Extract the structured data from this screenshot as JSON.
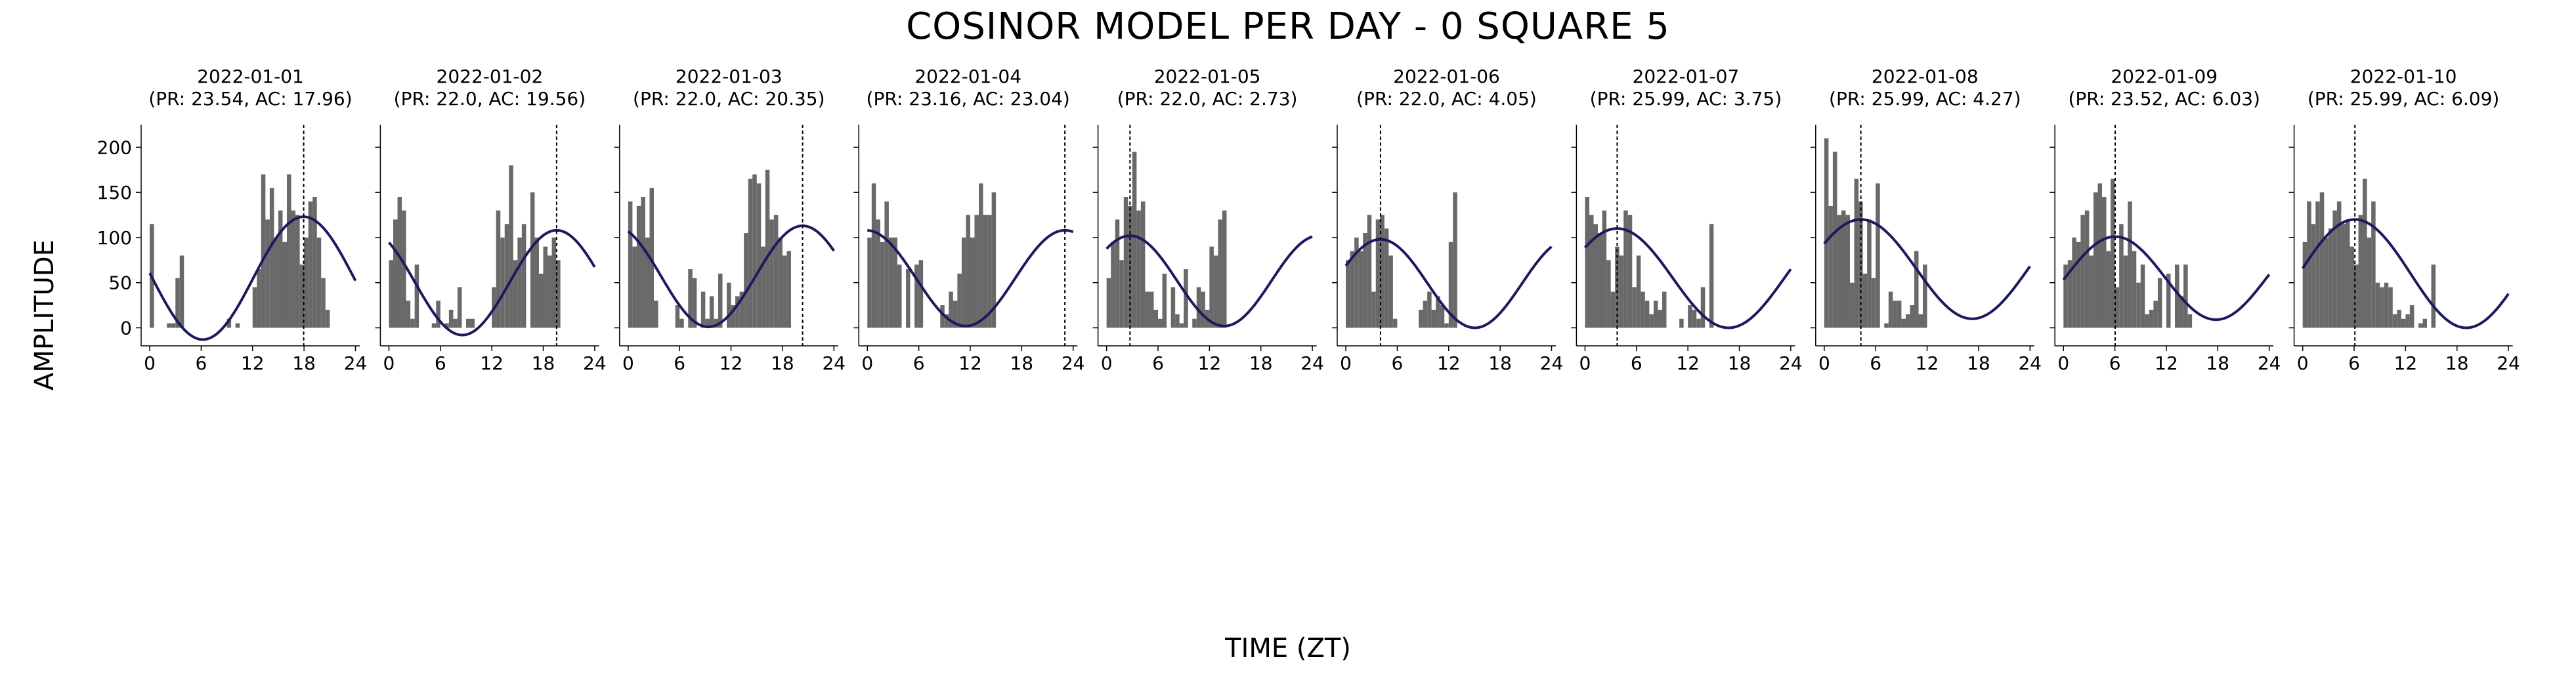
{
  "figure": {
    "title": "COSINOR MODEL PER DAY - 0 SQUARE 5",
    "xlabel": "TIME (ZT)",
    "ylabel": "AMPLITUDE",
    "colors": {
      "bars": "#696969",
      "fit": "#1a1a5e",
      "acrophase_line": "#000000",
      "axis": "#000000"
    }
  },
  "chart_data": [
    {
      "type": "bar+line",
      "date": "2022-01-01",
      "subtitle": "(PR: 23.54, AC: 17.96)",
      "period": 23.54,
      "acrophase": 17.96,
      "mesor": 55,
      "amplitude": 68,
      "values": [
        115,
        0,
        0,
        0,
        5,
        5,
        55,
        80,
        0,
        0,
        0,
        0,
        0,
        0,
        0,
        0,
        0,
        0,
        10,
        0,
        5,
        0,
        0,
        0,
        45,
        65,
        170,
        120,
        155,
        100,
        130,
        95,
        170,
        130,
        125,
        70,
        100,
        140,
        145,
        100,
        55,
        20
      ],
      "xticks": [
        0,
        6,
        12,
        18,
        24
      ],
      "yticks": [
        0,
        50,
        100,
        150,
        200
      ],
      "xlim": [
        -1,
        24.5
      ],
      "ylim": [
        -20,
        225
      ]
    },
    {
      "type": "bar+line",
      "date": "2022-01-02",
      "subtitle": "(PR: 22.0, AC: 19.56)",
      "period": 22.0,
      "acrophase": 19.56,
      "mesor": 50,
      "amplitude": 58,
      "values": [
        75,
        120,
        145,
        130,
        30,
        10,
        70,
        0,
        0,
        0,
        5,
        30,
        0,
        5,
        20,
        10,
        45,
        0,
        10,
        10,
        0,
        0,
        0,
        0,
        45,
        130,
        100,
        115,
        180,
        75,
        100,
        115,
        0,
        150,
        100,
        60,
        90,
        80,
        100,
        75,
        0,
        0
      ],
      "xticks": [
        0,
        6,
        12,
        18,
        24
      ],
      "yticks": [
        0,
        50,
        100,
        150,
        200
      ],
      "xlim": [
        -1,
        24.5
      ],
      "ylim": [
        -20,
        225
      ]
    },
    {
      "type": "bar+line",
      "date": "2022-01-03",
      "subtitle": "(PR: 22.0, AC: 20.35)",
      "period": 22.0,
      "acrophase": 20.35,
      "mesor": 57,
      "amplitude": 56,
      "values": [
        140,
        90,
        135,
        145,
        100,
        155,
        30,
        0,
        0,
        0,
        0,
        25,
        10,
        0,
        65,
        55,
        0,
        40,
        10,
        35,
        10,
        60,
        0,
        50,
        25,
        35,
        40,
        105,
        165,
        170,
        160,
        90,
        175,
        120,
        125,
        100,
        80,
        85,
        0,
        0,
        0,
        0
      ],
      "xticks": [
        0,
        6,
        12,
        18,
        24
      ],
      "yticks": [
        0,
        50,
        100,
        150,
        200
      ],
      "xlim": [
        -1,
        24.5
      ],
      "ylim": [
        -20,
        225
      ]
    },
    {
      "type": "bar+line",
      "date": "2022-01-04",
      "subtitle": "(PR: 23.16, AC: 23.04)",
      "period": 23.16,
      "acrophase": 23.04,
      "mesor": 55,
      "amplitude": 53,
      "values": [
        100,
        160,
        120,
        95,
        140,
        100,
        100,
        70,
        0,
        65,
        0,
        70,
        75,
        0,
        0,
        0,
        0,
        25,
        15,
        40,
        30,
        60,
        100,
        125,
        100,
        125,
        160,
        125,
        125,
        150,
        0,
        0,
        0,
        0,
        0,
        0,
        0,
        0,
        0,
        0,
        0,
        0
      ],
      "xticks": [
        0,
        6,
        12,
        18,
        24
      ],
      "yticks": [
        0,
        50,
        100,
        150,
        200
      ],
      "xlim": [
        -1,
        24.5
      ],
      "ylim": [
        -20,
        225
      ]
    },
    {
      "type": "bar+line",
      "date": "2022-01-05",
      "subtitle": "(PR: 22.0, AC: 2.73)",
      "period": 22.0,
      "acrophase": 2.73,
      "mesor": 52,
      "amplitude": 50,
      "values": [
        55,
        95,
        120,
        75,
        145,
        135,
        195,
        130,
        140,
        40,
        40,
        20,
        10,
        60,
        0,
        45,
        15,
        5,
        65,
        0,
        10,
        45,
        40,
        20,
        90,
        80,
        120,
        130,
        0,
        0,
        0,
        0,
        0,
        0,
        0,
        0,
        0,
        0,
        0,
        0,
        0,
        0
      ],
      "xticks": [
        0,
        6,
        12,
        18,
        24
      ],
      "yticks": [
        0,
        50,
        100,
        150,
        200
      ],
      "xlim": [
        -1,
        24.5
      ],
      "ylim": [
        -20,
        225
      ]
    },
    {
      "type": "bar+line",
      "date": "2022-01-06",
      "subtitle": "(PR: 22.0, AC: 4.05)",
      "period": 22.0,
      "acrophase": 4.05,
      "mesor": 49,
      "amplitude": 49,
      "values": [
        75,
        85,
        100,
        85,
        105,
        125,
        40,
        120,
        125,
        110,
        80,
        10,
        0,
        0,
        0,
        0,
        0,
        20,
        30,
        40,
        20,
        35,
        25,
        5,
        95,
        150,
        0,
        0,
        0,
        0,
        0,
        0,
        0,
        0,
        0,
        0,
        0,
        0,
        0,
        0,
        0,
        0
      ],
      "xticks": [
        0,
        6,
        12,
        18,
        24
      ],
      "yticks": [
        0,
        50,
        100,
        150,
        200
      ],
      "xlim": [
        -1,
        24.5
      ],
      "ylim": [
        -20,
        225
      ]
    },
    {
      "type": "bar+line",
      "date": "2022-01-07",
      "subtitle": "(PR: 25.99, AC: 3.75)",
      "period": 25.99,
      "acrophase": 3.75,
      "mesor": 55,
      "amplitude": 55,
      "values": [
        145,
        125,
        115,
        105,
        130,
        75,
        40,
        90,
        80,
        130,
        125,
        45,
        80,
        40,
        30,
        15,
        30,
        20,
        40,
        0,
        0,
        0,
        10,
        0,
        25,
        20,
        10,
        45,
        0,
        115,
        0,
        0,
        0,
        0,
        0,
        0,
        0,
        0,
        0,
        0,
        0,
        0
      ],
      "xticks": [
        0,
        6,
        12,
        18,
        24
      ],
      "yticks": [
        0,
        50,
        100,
        150,
        200
      ],
      "xlim": [
        -1,
        24.5
      ],
      "ylim": [
        -20,
        225
      ]
    },
    {
      "type": "bar+line",
      "date": "2022-01-08",
      "subtitle": "(PR: 25.99, AC: 4.27)",
      "period": 25.99,
      "acrophase": 4.27,
      "mesor": 65,
      "amplitude": 55,
      "values": [
        210,
        135,
        195,
        125,
        130,
        125,
        50,
        165,
        140,
        60,
        120,
        55,
        160,
        0,
        5,
        40,
        30,
        30,
        10,
        15,
        25,
        85,
        15,
        70,
        0,
        0,
        0,
        0,
        0,
        0,
        0,
        0,
        0,
        0,
        0,
        0,
        0,
        0,
        0,
        0,
        0,
        0
      ],
      "xticks": [
        0,
        6,
        12,
        18,
        24
      ],
      "yticks": [
        0,
        50,
        100,
        150,
        200
      ],
      "xlim": [
        -1,
        24.5
      ],
      "ylim": [
        -20,
        225
      ]
    },
    {
      "type": "bar+line",
      "date": "2022-01-09",
      "subtitle": "(PR: 23.52, AC: 6.03)",
      "period": 23.52,
      "acrophase": 6.03,
      "mesor": 55,
      "amplitude": 46,
      "values": [
        70,
        75,
        100,
        95,
        125,
        130,
        80,
        150,
        160,
        145,
        85,
        165,
        45,
        115,
        80,
        140,
        85,
        50,
        70,
        15,
        20,
        30,
        55,
        0,
        60,
        0,
        70,
        35,
        70,
        15,
        0,
        0,
        0,
        0,
        0,
        0,
        0,
        0,
        0,
        0,
        0,
        0
      ],
      "xticks": [
        0,
        6,
        12,
        18,
        24
      ],
      "yticks": [
        0,
        50,
        100,
        150,
        200
      ],
      "xlim": [
        -1,
        24.5
      ],
      "ylim": [
        -20,
        225
      ]
    },
    {
      "type": "bar+line",
      "date": "2022-01-10",
      "subtitle": "(PR: 25.99, AC: 6.09)",
      "period": 25.99,
      "acrophase": 6.09,
      "mesor": 60,
      "amplitude": 60,
      "values": [
        95,
        140,
        115,
        140,
        150,
        100,
        110,
        130,
        140,
        115,
        120,
        90,
        70,
        125,
        165,
        100,
        140,
        50,
        45,
        50,
        45,
        15,
        20,
        10,
        15,
        25,
        0,
        5,
        10,
        0,
        70,
        0,
        0,
        0,
        0,
        0,
        0,
        0,
        0,
        0,
        0,
        0
      ],
      "xticks": [
        0,
        6,
        12,
        18,
        24
      ],
      "yticks": [
        0,
        50,
        100,
        150,
        200
      ],
      "xlim": [
        -1,
        24.5
      ],
      "ylim": [
        -20,
        225
      ]
    }
  ]
}
